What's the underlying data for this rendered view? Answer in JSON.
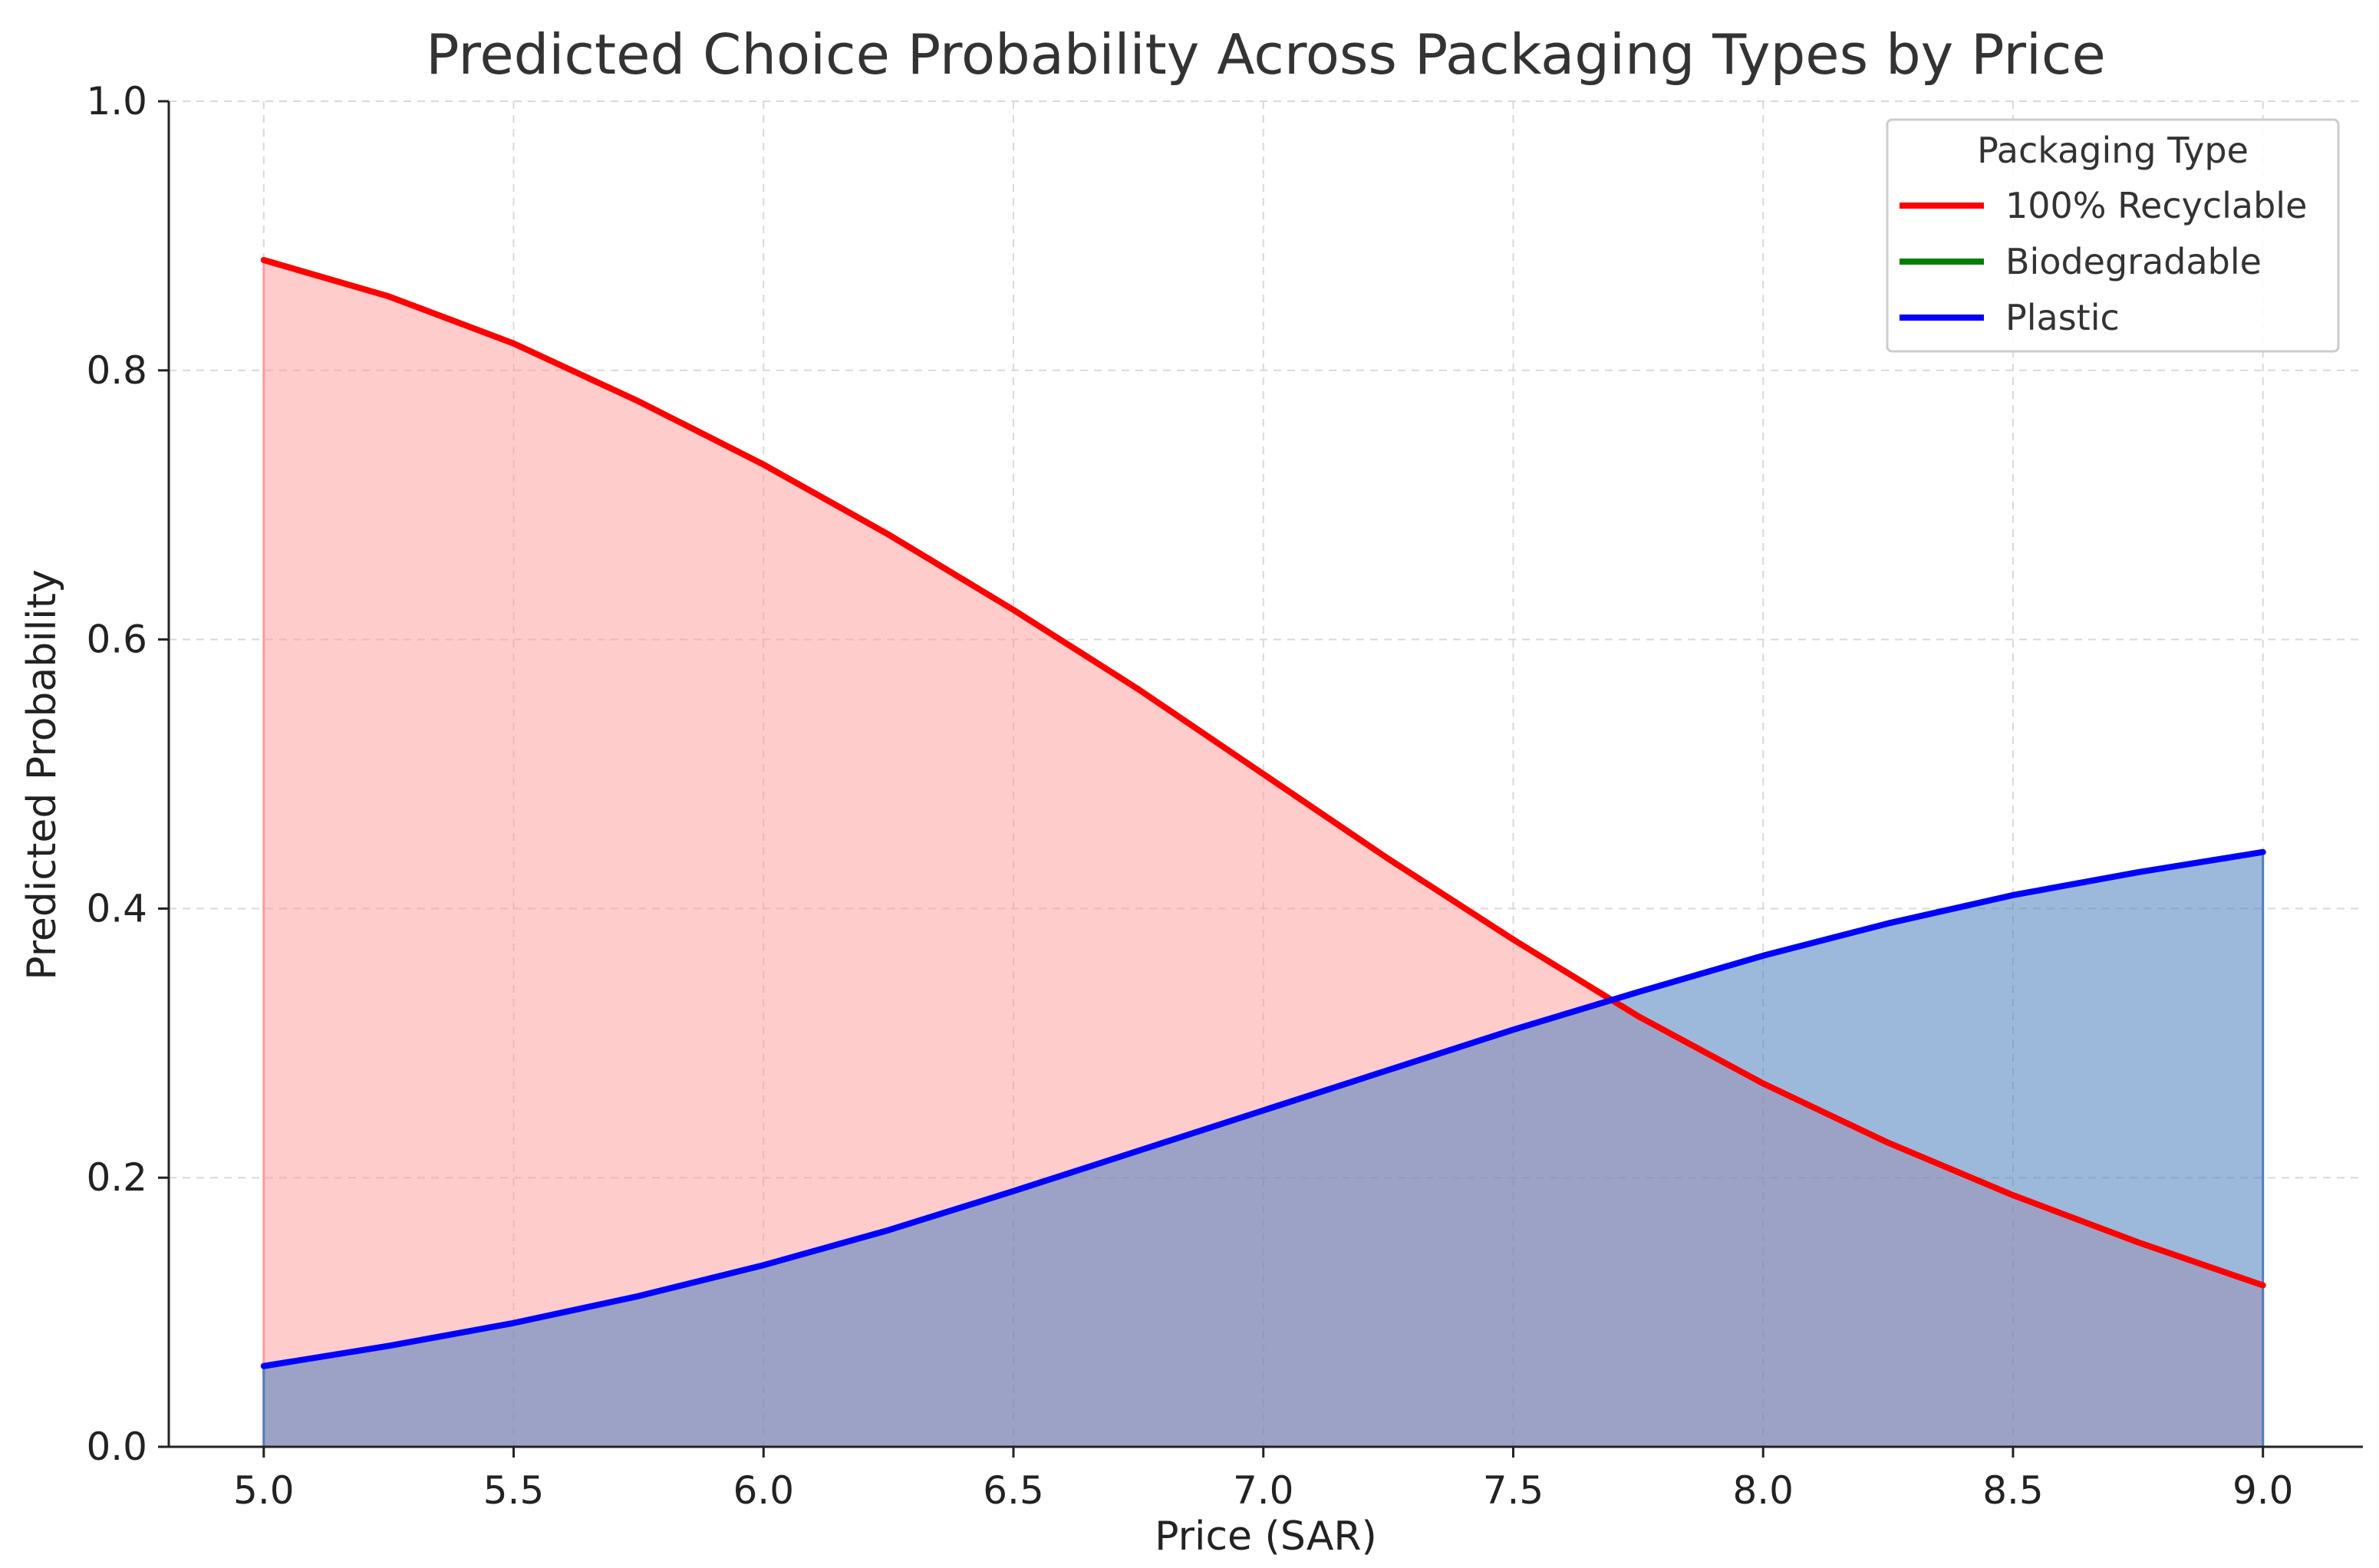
{
  "chart_data": {
    "type": "area",
    "title": "Predicted Choice Probability Across Packaging Types by Price",
    "xlabel": "Price (SAR)",
    "ylabel": "Predicted Probability",
    "xlim": [
      4.81,
      9.2
    ],
    "ylim": [
      0,
      1.0
    ],
    "grid": true,
    "legend": {
      "title": "Packaging Type",
      "placement": "top-right"
    },
    "x_ticks": [
      "5.0",
      "5.5",
      "6.0",
      "6.5",
      "7.0",
      "7.5",
      "8.0",
      "8.5",
      "9.0"
    ],
    "x_tick_values": [
      5.0,
      5.5,
      6.0,
      6.5,
      7.0,
      7.5,
      8.0,
      8.5,
      9.0
    ],
    "y_ticks": [
      "0.0",
      "0.2",
      "0.4",
      "0.6",
      "0.8",
      "1.0"
    ],
    "y_tick_values": [
      0.0,
      0.2,
      0.4,
      0.6,
      0.8,
      1.0
    ],
    "x": [
      5.0,
      5.25,
      5.5,
      5.75,
      6.0,
      6.25,
      6.5,
      6.75,
      7.0,
      7.25,
      7.5,
      7.75,
      8.0,
      8.25,
      8.5,
      8.75,
      9.0
    ],
    "series": [
      {
        "name": "100% Recyclable",
        "color": "#ff0000",
        "fill": "#ff9999",
        "values": [
          0.882,
          0.855,
          0.82,
          0.777,
          0.73,
          0.678,
          0.622,
          0.563,
          0.5,
          0.437,
          0.377,
          0.32,
          0.27,
          0.226,
          0.187,
          0.152,
          0.12
        ]
      },
      {
        "name": "Biodegradable",
        "color": "#008000",
        "fill": "#80c080",
        "values": [
          0.0,
          0.0,
          0.0,
          0.0,
          0.0,
          0.0,
          0.0,
          0.0,
          0.0,
          0.0,
          0.0,
          0.0,
          0.0,
          0.0,
          0.0,
          0.0,
          0.0
        ]
      },
      {
        "name": "Plastic",
        "color": "#0000ff",
        "fill": "#4a7fbf",
        "values": [
          0.06,
          0.075,
          0.092,
          0.112,
          0.135,
          0.161,
          0.19,
          0.22,
          0.25,
          0.28,
          0.31,
          0.338,
          0.365,
          0.389,
          0.41,
          0.427,
          0.442
        ]
      }
    ]
  }
}
